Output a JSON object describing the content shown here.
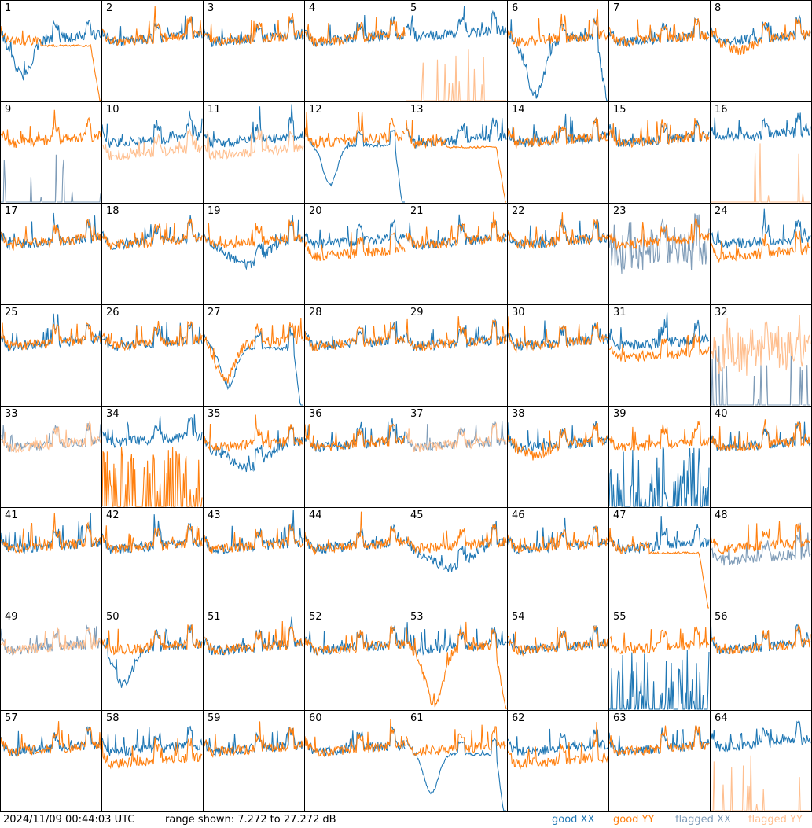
{
  "footer": {
    "timestamp": "2024/11/09 00:44:03 UTC",
    "range_text": "range shown: 7.272 to 27.272 dB",
    "legend": [
      {
        "label": "good XX",
        "color": "#1f77b4"
      },
      {
        "label": "good YY",
        "color": "#ff7f0e"
      },
      {
        "label": "flagged XX",
        "color": "#7f9cb8"
      },
      {
        "label": "flagged YY",
        "color": "#ffbf8f"
      }
    ]
  },
  "chart_data": {
    "type": "line",
    "title": "",
    "xlabel": "",
    "ylabel": "",
    "ylim": [
      7.272,
      27.272
    ],
    "grid": false,
    "layout": "8x8 small multiples",
    "panels": [
      {
        "label": "1",
        "xx": "sag",
        "yy": "rolloff_good",
        "flag": "none"
      },
      {
        "label": "2",
        "xx": "normal",
        "yy": "normal",
        "flag": "none"
      },
      {
        "label": "3",
        "xx": "normal",
        "yy": "normal",
        "flag": "none"
      },
      {
        "label": "4",
        "xx": "normal",
        "yy": "normal",
        "flag": "none"
      },
      {
        "label": "5",
        "xx": "high",
        "yy": "spikes_flagged",
        "flag": "yy"
      },
      {
        "label": "6",
        "xx": "deep_sag_rolloff",
        "yy": "normal",
        "flag": "none"
      },
      {
        "label": "7",
        "xx": "normal",
        "yy": "normal",
        "flag": "none"
      },
      {
        "label": "8",
        "xx": "normal",
        "yy": "dip",
        "flag": "none"
      },
      {
        "label": "9",
        "xx": "spikes_flagged",
        "yy": "normal",
        "flag": "xx"
      },
      {
        "label": "10",
        "xx": "normal",
        "yy": "low_flagged",
        "flag": "yy"
      },
      {
        "label": "11",
        "xx": "normal",
        "yy": "low_flagged",
        "flag": "yy"
      },
      {
        "label": "12",
        "xx": "sag_rolloff",
        "yy": "normal",
        "flag": "none"
      },
      {
        "label": "13",
        "xx": "normal",
        "yy": "rolloff",
        "flag": "none"
      },
      {
        "label": "14",
        "xx": "normal",
        "yy": "normal",
        "flag": "none"
      },
      {
        "label": "15",
        "xx": "normal",
        "yy": "normal",
        "flag": "none"
      },
      {
        "label": "16",
        "xx": "high",
        "yy": "spikes_flagged",
        "flag": "yy"
      },
      {
        "label": "17",
        "xx": "normal",
        "yy": "normal",
        "flag": "none"
      },
      {
        "label": "18",
        "xx": "normal",
        "yy": "normal",
        "flag": "none"
      },
      {
        "label": "19",
        "xx": "low_bowl",
        "yy": "normal",
        "flag": "none"
      },
      {
        "label": "20",
        "xx": "normal",
        "yy": "low",
        "flag": "none"
      },
      {
        "label": "21",
        "xx": "normal",
        "yy": "normal",
        "flag": "none"
      },
      {
        "label": "22",
        "xx": "normal",
        "yy": "normal",
        "flag": "none"
      },
      {
        "label": "23",
        "xx": "noisy_flagged",
        "yy": "normal",
        "flag": "xx"
      },
      {
        "label": "24",
        "xx": "normal",
        "yy": "low",
        "flag": "none"
      },
      {
        "label": "25",
        "xx": "normal",
        "yy": "normal",
        "flag": "none"
      },
      {
        "label": "26",
        "xx": "normal",
        "yy": "normal",
        "flag": "none"
      },
      {
        "label": "27",
        "xx": "sag_rolloff",
        "yy": "sag",
        "flag": "none"
      },
      {
        "label": "28",
        "xx": "normal",
        "yy": "normal",
        "flag": "none"
      },
      {
        "label": "29",
        "xx": "normal",
        "yy": "normal",
        "flag": "none"
      },
      {
        "label": "30",
        "xx": "normal",
        "yy": "normal",
        "flag": "none"
      },
      {
        "label": "31",
        "xx": "normal",
        "yy": "low",
        "flag": "none"
      },
      {
        "label": "32",
        "xx": "spikes_flagged",
        "yy": "noisy_flagged",
        "flag": "both"
      },
      {
        "label": "33",
        "xx": "normal_flagged",
        "yy": "normal_flagged",
        "flag": "both"
      },
      {
        "label": "34",
        "xx": "high",
        "yy": "spikes",
        "flag": "none"
      },
      {
        "label": "35",
        "xx": "low_bowl",
        "yy": "normal",
        "flag": "none"
      },
      {
        "label": "36",
        "xx": "normal",
        "yy": "normal",
        "flag": "none"
      },
      {
        "label": "37",
        "xx": "normal_flagged",
        "yy": "normal_flagged",
        "flag": "both"
      },
      {
        "label": "38",
        "xx": "normal",
        "yy": "dip",
        "flag": "none"
      },
      {
        "label": "39",
        "xx": "spikes",
        "yy": "normal",
        "flag": "none"
      },
      {
        "label": "40",
        "xx": "normal",
        "yy": "normal",
        "flag": "none"
      },
      {
        "label": "41",
        "xx": "normal",
        "yy": "normal",
        "flag": "none"
      },
      {
        "label": "42",
        "xx": "normal",
        "yy": "normal",
        "flag": "none"
      },
      {
        "label": "43",
        "xx": "normal",
        "yy": "normal",
        "flag": "none"
      },
      {
        "label": "44",
        "xx": "normal",
        "yy": "normal",
        "flag": "none"
      },
      {
        "label": "45",
        "xx": "low_bowl",
        "yy": "normal",
        "flag": "none"
      },
      {
        "label": "46",
        "xx": "normal",
        "yy": "normal",
        "flag": "none"
      },
      {
        "label": "47",
        "xx": "normal",
        "yy": "rolloff",
        "flag": "none"
      },
      {
        "label": "48",
        "xx": "low_flagged",
        "yy": "normal",
        "flag": "xx"
      },
      {
        "label": "49",
        "xx": "normal_flagged",
        "yy": "normal_flagged",
        "flag": "both"
      },
      {
        "label": "50",
        "xx": "sag",
        "yy": "normal",
        "flag": "none"
      },
      {
        "label": "51",
        "xx": "normal",
        "yy": "normal",
        "flag": "none"
      },
      {
        "label": "52",
        "xx": "normal",
        "yy": "normal",
        "flag": "none"
      },
      {
        "label": "53",
        "xx": "normal",
        "yy": "deep_sag_rolloff",
        "flag": "none"
      },
      {
        "label": "54",
        "xx": "normal",
        "yy": "normal",
        "flag": "none"
      },
      {
        "label": "55",
        "xx": "spikes",
        "yy": "normal",
        "flag": "none"
      },
      {
        "label": "56",
        "xx": "normal",
        "yy": "normal",
        "flag": "none"
      },
      {
        "label": "57",
        "xx": "normal",
        "yy": "normal",
        "flag": "none"
      },
      {
        "label": "58",
        "xx": "normal",
        "yy": "low",
        "flag": "none"
      },
      {
        "label": "59",
        "xx": "normal",
        "yy": "normal",
        "flag": "none"
      },
      {
        "label": "60",
        "xx": "normal",
        "yy": "normal",
        "flag": "none"
      },
      {
        "label": "61",
        "xx": "sag_rolloff",
        "yy": "normal",
        "flag": "none"
      },
      {
        "label": "62",
        "xx": "normal",
        "yy": "low",
        "flag": "none"
      },
      {
        "label": "63",
        "xx": "normal",
        "yy": "normal",
        "flag": "none"
      },
      {
        "label": "64",
        "xx": "high",
        "yy": "spikes_flagged",
        "flag": "yy"
      }
    ]
  }
}
